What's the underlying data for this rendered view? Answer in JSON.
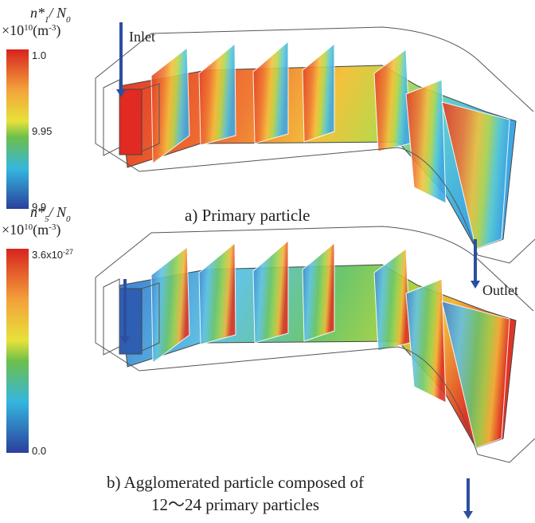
{
  "panels": [
    {
      "quantity": [
        "n*",
        "1",
        "/ N",
        "0"
      ],
      "unit": [
        "×10",
        "10",
        "(m",
        "-3",
        ")"
      ],
      "ticks": [
        {
          "base": "1.0"
        },
        {
          "base": "9.95"
        },
        {
          "base": "9.9"
        }
      ],
      "arrow_label": "Inlet",
      "caption": [
        "a) Primary particle"
      ]
    },
    {
      "quantity": [
        "n*",
        "5",
        "/ N",
        "0"
      ],
      "unit": [
        "×10",
        "10",
        "(m",
        "-3",
        ")"
      ],
      "ticks": [
        {
          "base": "3.6x10",
          "exp": "-27"
        },
        {
          "base": "0.0"
        }
      ],
      "arrow_label": "Outlet",
      "caption": [
        "b) Agglomerated particle composed of",
        "12〜24 primary particles"
      ]
    }
  ]
}
